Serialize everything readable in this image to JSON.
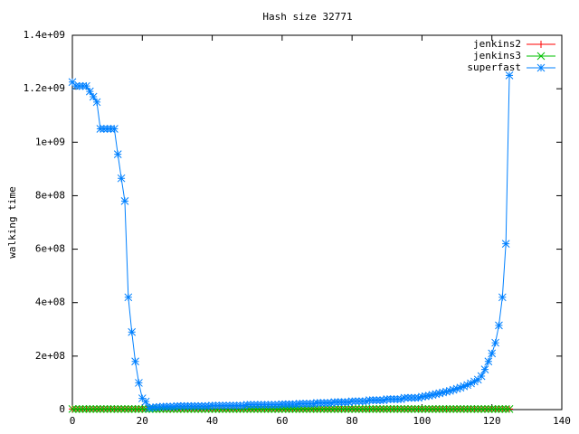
{
  "chart_data": {
    "type": "line",
    "title": "Hash size 32771",
    "ylabel": "walking time",
    "x": [
      0,
      1,
      2,
      3,
      4,
      5,
      6,
      7,
      8,
      9,
      10,
      11,
      12,
      13,
      14,
      15,
      16,
      17,
      18,
      19,
      20,
      21,
      22,
      23,
      24,
      25,
      26,
      27,
      28,
      29,
      30,
      31,
      32,
      33,
      34,
      35,
      36,
      37,
      38,
      39,
      40,
      41,
      42,
      43,
      44,
      45,
      46,
      47,
      48,
      49,
      50,
      51,
      52,
      53,
      54,
      55,
      56,
      57,
      58,
      59,
      60,
      61,
      62,
      63,
      64,
      65,
      66,
      67,
      68,
      69,
      70,
      71,
      72,
      73,
      74,
      75,
      76,
      77,
      78,
      79,
      80,
      81,
      82,
      83,
      84,
      85,
      86,
      87,
      88,
      89,
      90,
      91,
      92,
      93,
      94,
      95,
      96,
      97,
      98,
      99,
      100,
      101,
      102,
      103,
      104,
      105,
      106,
      107,
      108,
      109,
      110,
      111,
      112,
      113,
      114,
      115,
      116,
      117,
      118,
      119,
      120,
      121,
      122,
      123,
      124,
      125
    ],
    "series": [
      {
        "name": "jenkins2",
        "color": "#ff0000",
        "marker": "plus",
        "values": [
          2000000.0,
          2000000.0,
          2000000.0,
          2000000.0,
          2000000.0,
          2000000.0,
          2000000.0,
          2000000.0,
          2000000.0,
          2000000.0,
          2000000.0,
          2000000.0,
          2000000.0,
          2000000.0,
          2000000.0,
          2000000.0,
          2000000.0,
          2000000.0,
          2000000.0,
          2000000.0,
          2000000.0,
          2000000.0,
          2000000.0,
          2000000.0,
          2000000.0,
          2000000.0,
          2000000.0,
          2000000.0,
          2000000.0,
          2000000.0,
          2000000.0,
          2000000.0,
          2000000.0,
          2000000.0,
          2000000.0,
          2000000.0,
          2000000.0,
          2000000.0,
          2000000.0,
          2000000.0,
          2000000.0,
          2000000.0,
          2000000.0,
          2000000.0,
          2000000.0,
          2000000.0,
          2000000.0,
          2000000.0,
          2000000.0,
          2000000.0,
          2000000.0,
          2000000.0,
          2000000.0,
          2000000.0,
          2000000.0,
          2000000.0,
          2000000.0,
          2000000.0,
          2000000.0,
          2000000.0,
          2000000.0,
          2000000.0,
          2000000.0,
          2000000.0,
          2000000.0,
          2000000.0,
          2000000.0,
          2000000.0,
          2000000.0,
          2000000.0,
          2000000.0,
          2000000.0,
          2000000.0,
          2000000.0,
          2000000.0,
          2000000.0,
          2000000.0,
          2000000.0,
          2000000.0,
          2000000.0,
          2000000.0,
          2000000.0,
          2000000.0,
          2000000.0,
          2000000.0,
          2000000.0,
          2000000.0,
          2000000.0,
          2000000.0,
          2000000.0,
          2000000.0,
          2000000.0,
          2000000.0,
          2000000.0,
          2000000.0,
          2000000.0,
          2000000.0,
          2000000.0,
          2000000.0,
          2000000.0,
          2000000.0,
          2000000.0,
          2000000.0,
          2000000.0,
          2000000.0,
          2000000.0,
          2000000.0,
          2000000.0,
          2000000.0,
          2000000.0,
          2000000.0,
          2000000.0,
          2000000.0,
          2000000.0,
          2000000.0,
          2000000.0,
          2000000.0,
          2000000.0,
          2000000.0,
          2000000.0,
          2000000.0,
          2000000.0,
          2000000.0,
          2000000.0,
          2000000.0,
          2000000.0
        ]
      },
      {
        "name": "jenkins3",
        "color": "#00c000",
        "marker": "cross",
        "values": [
          2000000.0,
          2000000.0,
          2000000.0,
          2000000.0,
          2000000.0,
          2000000.0,
          2000000.0,
          2000000.0,
          2000000.0,
          2000000.0,
          2000000.0,
          2000000.0,
          2000000.0,
          2000000.0,
          2000000.0,
          2000000.0,
          2000000.0,
          2000000.0,
          2000000.0,
          2000000.0,
          2000000.0,
          2000000.0,
          2000000.0,
          2000000.0,
          2000000.0,
          2000000.0,
          2000000.0,
          2000000.0,
          2000000.0,
          2000000.0,
          2000000.0,
          2000000.0,
          2000000.0,
          2000000.0,
          2000000.0,
          2000000.0,
          2000000.0,
          2000000.0,
          2000000.0,
          2000000.0,
          2000000.0,
          2000000.0,
          2000000.0,
          2000000.0,
          2000000.0,
          2000000.0,
          2000000.0,
          2000000.0,
          2000000.0,
          2000000.0,
          2000000.0,
          2000000.0,
          2000000.0,
          2000000.0,
          2000000.0,
          2000000.0,
          2000000.0,
          2000000.0,
          2000000.0,
          2000000.0,
          2000000.0,
          2000000.0,
          2000000.0,
          2000000.0,
          2000000.0,
          2000000.0,
          2000000.0,
          2000000.0,
          2000000.0,
          2000000.0,
          2000000.0,
          2000000.0,
          2000000.0,
          2000000.0,
          2000000.0,
          2000000.0,
          2000000.0,
          2000000.0,
          2000000.0,
          2000000.0,
          2000000.0,
          2000000.0,
          2000000.0,
          2000000.0,
          2000000.0,
          2000000.0,
          2000000.0,
          2000000.0,
          2000000.0,
          2000000.0,
          2000000.0,
          2000000.0,
          2000000.0,
          2000000.0,
          2000000.0,
          2000000.0,
          2000000.0,
          2000000.0,
          2000000.0,
          2000000.0,
          2000000.0,
          2000000.0,
          2000000.0,
          2000000.0,
          2000000.0,
          2000000.0,
          2000000.0,
          2000000.0,
          2000000.0,
          2000000.0,
          2000000.0,
          2000000.0,
          2000000.0,
          2000000.0,
          2000000.0,
          2000000.0,
          2000000.0,
          2000000.0,
          2000000.0,
          2000000.0,
          2000000.0,
          2000000.0,
          2000000.0,
          2000000.0,
          2000000.0,
          2000000.0
        ]
      },
      {
        "name": "superfast",
        "color": "#0080ff",
        "marker": "star",
        "values": [
          1225000000.0,
          1210000000.0,
          1210000000.0,
          1210000000.0,
          1210000000.0,
          1190000000.0,
          1170000000.0,
          1150000000.0,
          1050000000.0,
          1050000000.0,
          1050000000.0,
          1050000000.0,
          1050000000.0,
          955000000.0,
          865000000.0,
          780000000.0,
          420000000.0,
          290000000.0,
          180000000.0,
          100000000.0,
          42000000.0,
          30000000.0,
          5000000.0,
          8000000.0,
          9000000.0,
          10000000.0,
          11000000.0,
          11000000.0,
          11000000.0,
          11000000.0,
          13000000.0,
          13000000.0,
          13000000.0,
          13000000.0,
          13000000.0,
          13000000.0,
          13000000.0,
          13000000.0,
          13000000.0,
          13000000.0,
          15000000.0,
          15000000.0,
          15000000.0,
          15000000.0,
          15000000.0,
          15000000.0,
          15000000.0,
          15000000.0,
          15000000.0,
          15000000.0,
          18000000.0,
          18000000.0,
          18000000.0,
          18000000.0,
          18000000.0,
          18000000.0,
          18000000.0,
          18000000.0,
          18000000.0,
          18000000.0,
          20000000.0,
          20000000.0,
          20000000.0,
          20000000.0,
          20000000.0,
          22000000.0,
          22000000.0,
          22000000.0,
          22000000.0,
          22000000.0,
          25000000.0,
          25000000.0,
          25000000.0,
          25000000.0,
          25000000.0,
          28000000.0,
          28000000.0,
          28000000.0,
          28000000.0,
          28000000.0,
          31000000.0,
          31000000.0,
          31000000.0,
          31000000.0,
          31000000.0,
          35000000.0,
          35000000.0,
          35000000.0,
          35000000.0,
          35000000.0,
          39000000.0,
          39000000.0,
          39000000.0,
          39000000.0,
          39000000.0,
          44000000.0,
          44000000.0,
          44000000.0,
          44000000.0,
          44000000.0,
          48000000.0,
          50000000.0,
          52000000.0,
          55000000.0,
          58000000.0,
          61000000.0,
          64000000.0,
          67000000.0,
          70000000.0,
          74000000.0,
          78000000.0,
          82000000.0,
          87000000.0,
          92000000.0,
          98000000.0,
          105000000.0,
          112000000.0,
          125000000.0,
          150000000.0,
          180000000.0,
          210000000.0,
          250000000.0,
          315000000.0,
          420000000.0,
          620000000.0,
          1250000000.0
        ]
      }
    ],
    "xlim": [
      0,
      140
    ],
    "xticks": [
      0,
      20,
      40,
      60,
      80,
      100,
      120,
      140
    ],
    "ylim": [
      0,
      1400000000
    ],
    "yticks": [
      0,
      {
        "value": 200000000,
        "label": "2e+08"
      },
      {
        "value": 400000000,
        "label": "4e+08"
      },
      {
        "value": 600000000,
        "label": "6e+08"
      },
      {
        "value": 800000000,
        "label": "8e+08"
      },
      {
        "value": 1000000000,
        "label": "1e+09"
      },
      {
        "value": 1200000000,
        "label": "1.2e+09"
      },
      {
        "value": 1400000000,
        "label": "1.4e+09"
      }
    ],
    "legend": "top right"
  }
}
